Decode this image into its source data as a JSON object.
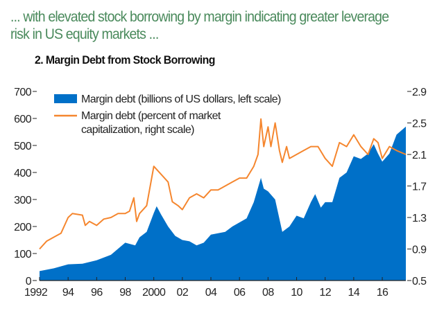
{
  "headline": "... with elevated stock borrowing by margin indicating greater leverage risk in US equity markets ...",
  "chart_data": {
    "type": "area",
    "title": "2. Margin Debt from Stock Borrowing",
    "x_tick_labels": [
      "1992",
      "94",
      "96",
      "98",
      "2000",
      "02",
      "04",
      "06",
      "08",
      "10",
      "12",
      "14",
      "16"
    ],
    "x_ticks": [
      1992,
      1994,
      1996,
      1998,
      2000,
      2002,
      2004,
      2006,
      2008,
      2010,
      2012,
      2014,
      2016
    ],
    "xlim": [
      1992,
      2017.65
    ],
    "left_axis": {
      "ylim": [
        0,
        700
      ],
      "ticks": [
        0,
        100,
        200,
        300,
        400,
        500,
        600,
        700
      ]
    },
    "right_axis": {
      "ylim": [
        0.5,
        2.9
      ],
      "ticks": [
        "0.5",
        "0.9",
        "1.3",
        "1.7",
        "2.1",
        "2.5",
        "2.9"
      ]
    },
    "legend_placement": "top-left",
    "colors": {
      "area": "#0070c8",
      "line": "#f5862e"
    },
    "series": [
      {
        "name": "Margin debt (billions of US dollars, left scale)",
        "axis": "left",
        "kind": "area",
        "x": [
          1992,
          1993,
          1994,
          1995,
          1996,
          1997,
          1998,
          1998.7,
          1999,
          1999.5,
          2000,
          2000.2,
          2000.5,
          2001,
          2001.5,
          2002,
          2002.5,
          2003,
          2003.5,
          2004,
          2005,
          2005.5,
          2006,
          2006.5,
          2007,
          2007.5,
          2007.7,
          2008,
          2008.5,
          2009,
          2009.5,
          2010,
          2010.5,
          2011,
          2011.3,
          2011.7,
          2012,
          2012.5,
          2013,
          2013.5,
          2014,
          2014.5,
          2015,
          2015.4,
          2015.7,
          2016,
          2016.5,
          2017,
          2017.65
        ],
        "y": [
          35,
          45,
          60,
          62,
          75,
          95,
          140,
          130,
          160,
          180,
          250,
          275,
          245,
          200,
          165,
          150,
          145,
          130,
          140,
          170,
          180,
          200,
          215,
          230,
          290,
          380,
          340,
          330,
          300,
          180,
          200,
          240,
          230,
          290,
          320,
          270,
          290,
          290,
          380,
          400,
          460,
          450,
          470,
          505,
          470,
          440,
          470,
          540,
          570
        ]
      },
      {
        "name": "Margin debt (percent of market capitalization, right scale)",
        "axis": "right",
        "kind": "line",
        "x": [
          1992,
          1992.5,
          1993,
          1993.5,
          1994,
          1994.3,
          1995,
          1995.2,
          1995.5,
          1996,
          1996.5,
          1997,
          1997.5,
          1998,
          1998.3,
          1998.6,
          1998.8,
          1999,
          1999.5,
          2000,
          2000.5,
          2001,
          2001.3,
          2001.7,
          2002,
          2002.5,
          2003,
          2003.5,
          2004,
          2004.5,
          2005,
          2005.5,
          2006,
          2006.5,
          2007,
          2007.3,
          2007.5,
          2007.7,
          2008,
          2008.2,
          2008.5,
          2008.8,
          2009,
          2009.3,
          2009.5,
          2010,
          2010.5,
          2011,
          2011.5,
          2012,
          2012.5,
          2013,
          2013.5,
          2014,
          2014.5,
          2015,
          2015.4,
          2015.7,
          2016,
          2016.5,
          2017,
          2017.65
        ],
        "y": [
          0.9,
          1.0,
          1.05,
          1.1,
          1.3,
          1.35,
          1.33,
          1.2,
          1.25,
          1.2,
          1.28,
          1.3,
          1.35,
          1.35,
          1.38,
          1.55,
          1.25,
          1.35,
          1.45,
          1.95,
          1.85,
          1.75,
          1.5,
          1.45,
          1.4,
          1.55,
          1.6,
          1.55,
          1.65,
          1.65,
          1.7,
          1.75,
          1.8,
          1.8,
          1.95,
          2.1,
          2.55,
          2.2,
          2.45,
          2.2,
          2.5,
          2.15,
          2.0,
          2.2,
          2.05,
          2.1,
          2.15,
          2.2,
          2.2,
          2.05,
          1.95,
          2.25,
          2.2,
          2.35,
          2.2,
          2.1,
          2.3,
          2.25,
          2.05,
          2.2,
          2.15,
          2.1
        ]
      }
    ],
    "legend": {
      "area_label": "Margin debt (billions of US dollars, left scale)",
      "line_label_1": "Margin debt (percent of market",
      "line_label_2": "capitalization, right scale)"
    }
  }
}
